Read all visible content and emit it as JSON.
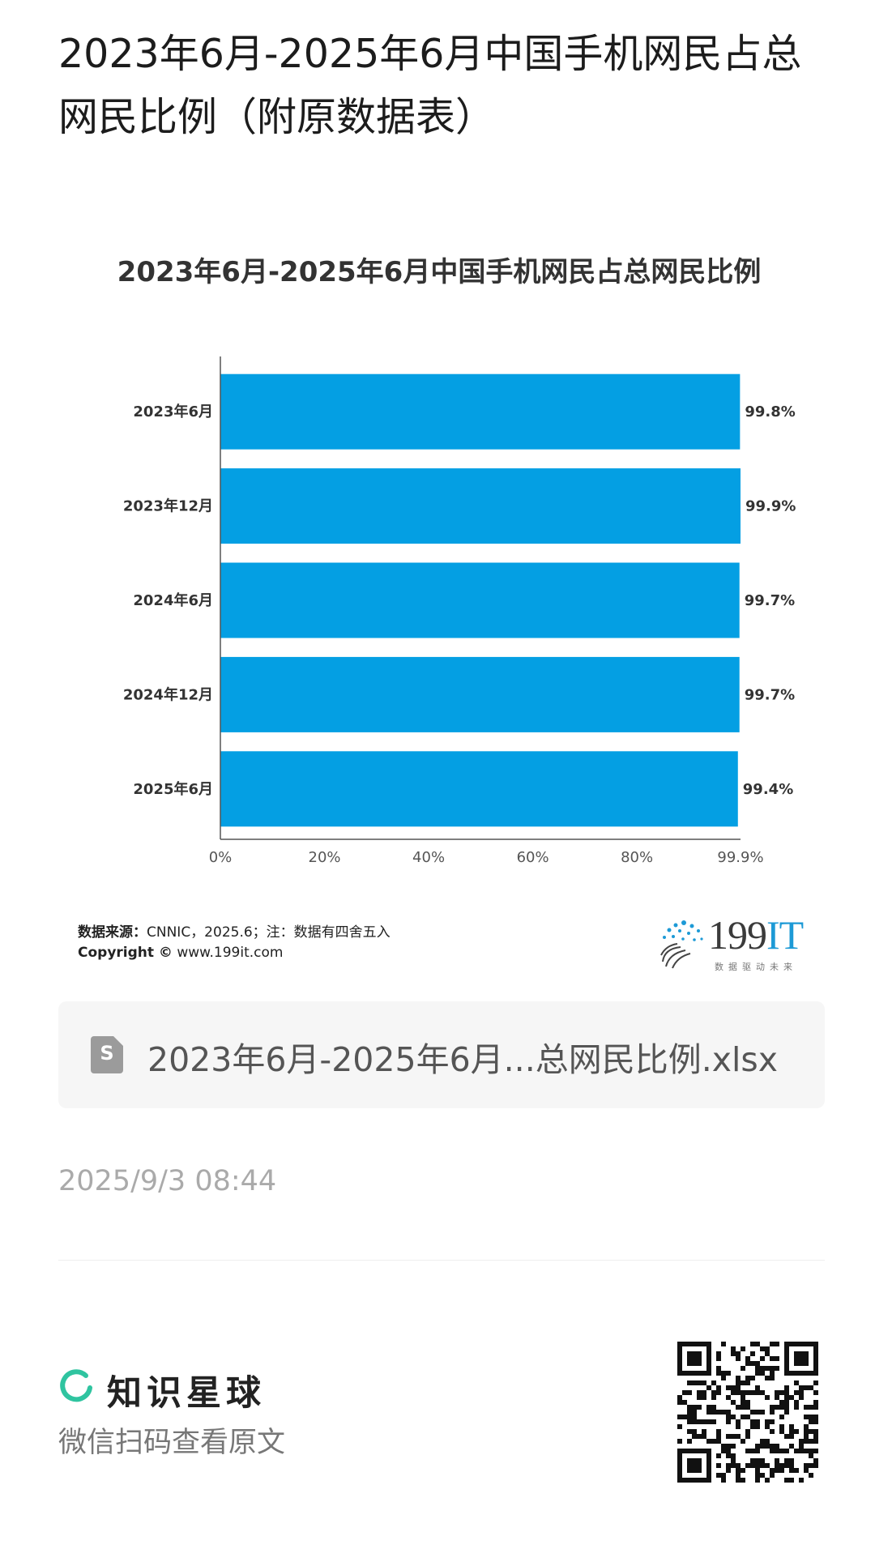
{
  "page_title": "2023年6月-2025年6月中国手机网民占总网民比例（附原数据表）",
  "chart_data": {
    "type": "bar",
    "orientation": "horizontal",
    "title": "2023年6月-2025年6月中国手机网民占总网民比例",
    "categories": [
      "2023年6月",
      "2023年12月",
      "2024年6月",
      "2024年12月",
      "2025年6月"
    ],
    "values": [
      99.8,
      99.9,
      99.7,
      99.7,
      99.4
    ],
    "value_labels": [
      "99.8%",
      "99.9%",
      "99.7%",
      "99.7%",
      "99.4%"
    ],
    "x_ticks": [
      0,
      20,
      40,
      60,
      80,
      99.9
    ],
    "x_tick_labels": [
      "0%",
      "20%",
      "40%",
      "60%",
      "80%",
      "99.9%"
    ],
    "xlim": [
      0,
      99.9
    ],
    "bar_color": "#049fe3",
    "grid": false,
    "legend": "none",
    "xlabel": "",
    "ylabel": ""
  },
  "source": {
    "label": "数据来源：",
    "text": "CNNIC，2025.6；注：数据有四舍五入",
    "copyright_label": "Copyright ©",
    "copyright_text": "www.199it.com"
  },
  "logo": {
    "main": "199",
    "accent": "IT",
    "tagline": "数据驱动未来",
    "accent_color": "#1d9ad6"
  },
  "attachment": {
    "icon": "spreadsheet-icon",
    "icon_letter": "S",
    "file_name": "2023年6月-2025年6月...总网民比例.xlsx"
  },
  "timestamp": "2025/9/3 08:44",
  "footer": {
    "brand_name": "知识星球",
    "brand_color": "#2fc4a0",
    "scan_hint": "微信扫码查看原文"
  }
}
